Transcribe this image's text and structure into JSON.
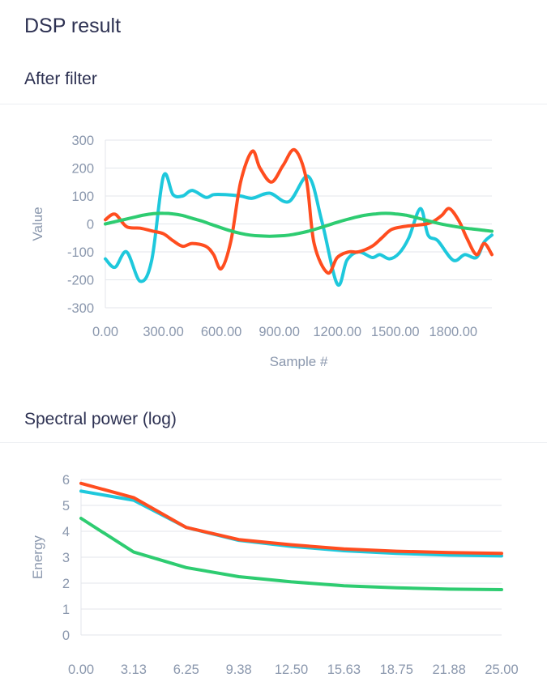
{
  "page": {
    "title": "DSP result",
    "filter_section_title": "After filter",
    "spectrum_section_title": "Spectral power (log)"
  },
  "chart_data": [
    {
      "type": "line",
      "ylabel": "Value",
      "xlabel": "Sample #",
      "xlim": [
        0,
        2000
      ],
      "ylim": [
        -300,
        300
      ],
      "grid": true,
      "legend": "none",
      "y_ticks": [
        "300",
        "200",
        "100",
        "0",
        "-100",
        "-200",
        "-300"
      ],
      "x_ticks": [
        {
          "value": 0,
          "label": "0.00"
        },
        {
          "value": 300,
          "label": "300.00"
        },
        {
          "value": 600,
          "label": "600.00"
        },
        {
          "value": 900,
          "label": "900.00"
        },
        {
          "value": 1200,
          "label": "1200.00"
        },
        {
          "value": 1500,
          "label": "1500.00"
        },
        {
          "value": 1800,
          "label": "1800.00"
        }
      ],
      "series": [
        {
          "color": "#1ec8dc",
          "x": [
            0,
            50,
            110,
            180,
            240,
            300,
            350,
            400,
            450,
            520,
            560,
            620,
            700,
            760,
            850,
            950,
            1050,
            1120,
            1200,
            1250,
            1310,
            1380,
            1420,
            1470,
            1520,
            1570,
            1630,
            1670,
            1720,
            1800,
            1860,
            1920,
            1960,
            2000
          ],
          "y": [
            -125,
            -155,
            -100,
            -205,
            -130,
            170,
            105,
            100,
            120,
            95,
            105,
            105,
            100,
            92,
            110,
            80,
            170,
            10,
            -215,
            -130,
            -100,
            -120,
            -110,
            -125,
            -105,
            -50,
            55,
            -40,
            -60,
            -130,
            -110,
            -120,
            -65,
            -40
          ]
        },
        {
          "color": "#ff4d1f",
          "x": [
            0,
            50,
            110,
            180,
            240,
            300,
            350,
            400,
            450,
            520,
            560,
            600,
            650,
            700,
            760,
            800,
            860,
            920,
            980,
            1040,
            1080,
            1150,
            1200,
            1260,
            1310,
            1380,
            1430,
            1480,
            1540,
            1600,
            1660,
            1700,
            1740,
            1780,
            1830,
            1870,
            1920,
            1960,
            2000
          ],
          "y": [
            15,
            35,
            -10,
            -15,
            -25,
            -35,
            -60,
            -80,
            -70,
            -80,
            -110,
            -160,
            -60,
            150,
            260,
            200,
            150,
            210,
            265,
            160,
            -70,
            -175,
            -120,
            -100,
            -100,
            -80,
            -50,
            -20,
            -10,
            -5,
            0,
            10,
            30,
            55,
            10,
            -50,
            -110,
            -70,
            -110
          ]
        },
        {
          "color": "#2ecc71",
          "x": [
            0,
            50,
            100,
            150,
            200,
            250,
            300,
            350,
            400,
            450,
            500,
            550,
            600,
            650,
            700,
            750,
            800,
            850,
            900,
            950,
            1000,
            1050,
            1100,
            1150,
            1200,
            1250,
            1300,
            1350,
            1400,
            1450,
            1500,
            1550,
            1600,
            1650,
            1700,
            1750,
            1800,
            1850,
            1900,
            1950,
            2000
          ],
          "y": [
            0,
            8,
            16,
            24,
            32,
            37,
            38,
            36,
            30,
            20,
            10,
            -2,
            -14,
            -25,
            -34,
            -40,
            -43,
            -44,
            -43,
            -40,
            -34,
            -26,
            -16,
            -5,
            6,
            16,
            25,
            32,
            36,
            38,
            36,
            32,
            24,
            15,
            6,
            -2,
            -8,
            -14,
            -18,
            -22,
            -26
          ]
        }
      ]
    },
    {
      "type": "line",
      "ylabel": "Energy",
      "xlabel": "",
      "xlim": [
        0,
        25
      ],
      "ylim": [
        0,
        6
      ],
      "grid": true,
      "legend": "none",
      "y_ticks": [
        "6",
        "5",
        "4",
        "3",
        "2",
        "1",
        "0"
      ],
      "x_ticks": [
        {
          "value": 0,
          "label": "0.00"
        },
        {
          "value": 3.125,
          "label": "3.13"
        },
        {
          "value": 6.25,
          "label": "6.25"
        },
        {
          "value": 9.375,
          "label": "9.38"
        },
        {
          "value": 12.5,
          "label": "12.50"
        },
        {
          "value": 15.625,
          "label": "15.63"
        },
        {
          "value": 18.75,
          "label": "18.75"
        },
        {
          "value": 21.875,
          "label": "21.88"
        },
        {
          "value": 25,
          "label": "25.00"
        }
      ],
      "series": [
        {
          "color": "#1ec8dc",
          "x": [
            0,
            3.125,
            6.25,
            9.375,
            12.5,
            15.625,
            18.75,
            21.875,
            25
          ],
          "y": [
            5.55,
            5.2,
            4.15,
            3.65,
            3.42,
            3.25,
            3.15,
            3.08,
            3.05
          ]
        },
        {
          "color": "#ff4d1f",
          "x": [
            0,
            3.125,
            6.25,
            9.375,
            12.5,
            15.625,
            18.75,
            21.875,
            25
          ],
          "y": [
            5.85,
            5.3,
            4.15,
            3.68,
            3.48,
            3.32,
            3.23,
            3.18,
            3.15
          ]
        },
        {
          "color": "#2ecc71",
          "x": [
            0,
            3.125,
            6.25,
            9.375,
            12.5,
            15.625,
            18.75,
            21.875,
            25
          ],
          "y": [
            4.5,
            3.2,
            2.6,
            2.25,
            2.05,
            1.9,
            1.82,
            1.77,
            1.75
          ]
        }
      ]
    }
  ]
}
